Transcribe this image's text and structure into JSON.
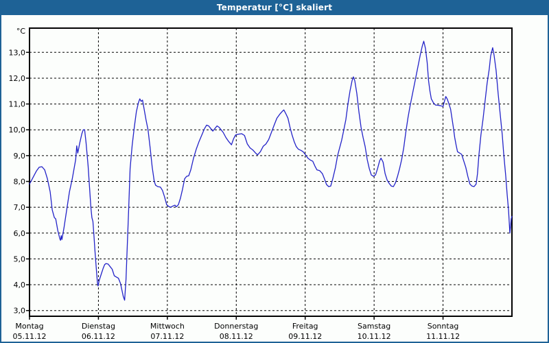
{
  "window": {
    "title": "Temperatur [°C] skaliert",
    "titlebar_color": "#1e6296",
    "border_color": "#1e6296",
    "background_color": "#fcfefc"
  },
  "chart_data": {
    "type": "line",
    "title": "Temperatur [°C] skaliert",
    "y_unit_label": "°C",
    "xlabel": "",
    "ylabel": "Temperatur [°C]",
    "ylim": [
      2.78,
      13.94
    ],
    "x_day_range": [
      0,
      7
    ],
    "grid": true,
    "legend": "none",
    "line_color": "#2222c8",
    "grid_color": "#000000",
    "y_ticks": [
      {
        "value": 3,
        "label": "3,0"
      },
      {
        "value": 4,
        "label": "4,0"
      },
      {
        "value": 5,
        "label": "5,0"
      },
      {
        "value": 6,
        "label": "6,0"
      },
      {
        "value": 7,
        "label": "7,0"
      },
      {
        "value": 8,
        "label": "8,0"
      },
      {
        "value": 9,
        "label": "9,0"
      },
      {
        "value": 10,
        "label": "10,0"
      },
      {
        "value": 11,
        "label": "11,0"
      },
      {
        "value": 12,
        "label": "12,0"
      },
      {
        "value": 13,
        "label": "13,0"
      }
    ],
    "x_days": [
      {
        "name": "Montag",
        "date": "05.11.12"
      },
      {
        "name": "Dienstag",
        "date": "06.11.12"
      },
      {
        "name": "Mittwoch",
        "date": "07.11.12"
      },
      {
        "name": "Donnerstag",
        "date": "08.11.12"
      },
      {
        "name": "Freitag",
        "date": "09.11.12"
      },
      {
        "name": "Samstag",
        "date": "10.11.12"
      },
      {
        "name": "Sonntag",
        "date": "11.11.12"
      }
    ],
    "series": [
      {
        "name": "Temperatur",
        "x_day": [
          0.0,
          0.05,
          0.1,
          0.14,
          0.18,
          0.22,
          0.26,
          0.3,
          0.33,
          0.36,
          0.38,
          0.41,
          0.44,
          0.45,
          0.46,
          0.47,
          0.5,
          0.54,
          0.58,
          0.62,
          0.65,
          0.67,
          0.685,
          0.7,
          0.73,
          0.76,
          0.78,
          0.8,
          0.82,
          0.85,
          0.87,
          0.89,
          0.905,
          0.92,
          0.935,
          0.95,
          0.97,
          0.985,
          0.995,
          1.01,
          1.04,
          1.07,
          1.09,
          1.11,
          1.14,
          1.17,
          1.2,
          1.23,
          1.26,
          1.29,
          1.32,
          1.34,
          1.36,
          1.38,
          1.4,
          1.42,
          1.44,
          1.46,
          1.49,
          1.52,
          1.55,
          1.58,
          1.6,
          1.62,
          1.64,
          1.66,
          1.69,
          1.72,
          1.75,
          1.78,
          1.81,
          1.83,
          1.86,
          1.9,
          1.93,
          1.96,
          1.99,
          2.02,
          2.05,
          2.08,
          2.11,
          2.13,
          2.16,
          2.19,
          2.22,
          2.25,
          2.28,
          2.31,
          2.34,
          2.38,
          2.42,
          2.46,
          2.5,
          2.54,
          2.57,
          2.6,
          2.63,
          2.66,
          2.69,
          2.72,
          2.75,
          2.78,
          2.81,
          2.85,
          2.89,
          2.93,
          2.96,
          2.99,
          3.03,
          3.08,
          3.12,
          3.16,
          3.2,
          3.24,
          3.28,
          3.31,
          3.35,
          3.39,
          3.43,
          3.47,
          3.51,
          3.55,
          3.59,
          3.63,
          3.67,
          3.69,
          3.72,
          3.75,
          3.78,
          3.81,
          3.84,
          3.87,
          3.9,
          3.94,
          3.97,
          4.0,
          4.04,
          4.08,
          4.11,
          4.14,
          4.17,
          4.21,
          4.25,
          4.28,
          4.31,
          4.34,
          4.37,
          4.4,
          4.44,
          4.47,
          4.5,
          4.53,
          4.56,
          4.59,
          4.62,
          4.65,
          4.68,
          4.7,
          4.72,
          4.75,
          4.78,
          4.81,
          4.84,
          4.87,
          4.9,
          4.93,
          4.96,
          4.99,
          5.02,
          5.05,
          5.08,
          5.1,
          5.13,
          5.16,
          5.19,
          5.22,
          5.25,
          5.28,
          5.31,
          5.34,
          5.37,
          5.4,
          5.43,
          5.46,
          5.49,
          5.52,
          5.55,
          5.58,
          5.61,
          5.64,
          5.67,
          5.7,
          5.72,
          5.745,
          5.77,
          5.79,
          5.81,
          5.83,
          5.86,
          5.89,
          5.93,
          5.97,
          6.0,
          6.02,
          6.04,
          6.06,
          6.08,
          6.11,
          6.13,
          6.15,
          6.17,
          6.19,
          6.21,
          6.24,
          6.27,
          6.3,
          6.33,
          6.36,
          6.39,
          6.42,
          6.45,
          6.48,
          6.5,
          6.52,
          6.55,
          6.58,
          6.61,
          6.64,
          6.67,
          6.69,
          6.72,
          6.74,
          6.77,
          6.8,
          6.83,
          6.86,
          6.88,
          6.91,
          6.93,
          6.95,
          6.97,
          6.99,
          7.0
        ],
        "values": [
          7.9,
          8.15,
          8.4,
          8.55,
          8.57,
          8.45,
          8.1,
          7.6,
          6.9,
          6.6,
          6.55,
          6.1,
          5.78,
          5.72,
          5.9,
          5.75,
          6.2,
          6.9,
          7.6,
          8.1,
          8.55,
          8.85,
          9.38,
          9.1,
          9.5,
          9.85,
          10.0,
          10.0,
          9.5,
          8.6,
          7.8,
          7.0,
          6.6,
          6.45,
          5.9,
          5.3,
          4.6,
          4.1,
          3.95,
          4.15,
          4.4,
          4.65,
          4.78,
          4.82,
          4.8,
          4.7,
          4.6,
          4.35,
          4.3,
          4.25,
          4.05,
          3.8,
          3.55,
          3.4,
          4.2,
          5.6,
          7.0,
          8.5,
          9.4,
          10.1,
          10.7,
          11.05,
          11.2,
          11.1,
          11.15,
          10.85,
          10.4,
          10.0,
          9.3,
          8.55,
          8.0,
          7.85,
          7.8,
          7.78,
          7.65,
          7.4,
          7.1,
          7.03,
          7.0,
          7.05,
          7.08,
          7.02,
          7.1,
          7.35,
          7.7,
          8.1,
          8.2,
          8.22,
          8.45,
          8.9,
          9.25,
          9.55,
          9.8,
          10.05,
          10.18,
          10.15,
          10.05,
          9.95,
          10.05,
          10.15,
          10.1,
          10.0,
          9.9,
          9.7,
          9.55,
          9.42,
          9.65,
          9.8,
          9.83,
          9.85,
          9.78,
          9.45,
          9.3,
          9.22,
          9.1,
          9.03,
          9.15,
          9.36,
          9.45,
          9.62,
          9.9,
          10.18,
          10.45,
          10.6,
          10.72,
          10.77,
          10.62,
          10.45,
          10.1,
          9.8,
          9.55,
          9.35,
          9.25,
          9.2,
          9.15,
          9.05,
          8.9,
          8.82,
          8.78,
          8.6,
          8.45,
          8.42,
          8.3,
          8.1,
          7.88,
          7.8,
          7.82,
          8.1,
          8.55,
          9.0,
          9.3,
          9.6,
          10.0,
          10.4,
          11.0,
          11.5,
          11.9,
          12.05,
          11.9,
          11.4,
          10.7,
          10.1,
          9.7,
          9.35,
          8.85,
          8.5,
          8.25,
          8.2,
          8.25,
          8.5,
          8.8,
          8.9,
          8.75,
          8.3,
          8.05,
          7.92,
          7.82,
          7.8,
          7.95,
          8.2,
          8.5,
          8.85,
          9.3,
          9.9,
          10.45,
          10.9,
          11.3,
          11.7,
          12.1,
          12.5,
          12.9,
          13.25,
          13.43,
          13.15,
          12.6,
          11.9,
          11.5,
          11.2,
          11.05,
          10.96,
          10.95,
          10.93,
          10.9,
          11.1,
          11.29,
          11.2,
          11.05,
          10.8,
          10.45,
          10.1,
          9.7,
          9.4,
          9.15,
          9.1,
          9.05,
          8.8,
          8.55,
          8.2,
          7.9,
          7.82,
          7.8,
          7.9,
          8.3,
          9.0,
          9.8,
          10.4,
          11.1,
          11.8,
          12.35,
          12.85,
          13.18,
          12.9,
          12.3,
          11.4,
          10.6,
          9.8,
          9.1,
          8.2,
          7.5,
          6.9,
          6.0,
          6.55,
          6.65
        ]
      }
    ]
  }
}
